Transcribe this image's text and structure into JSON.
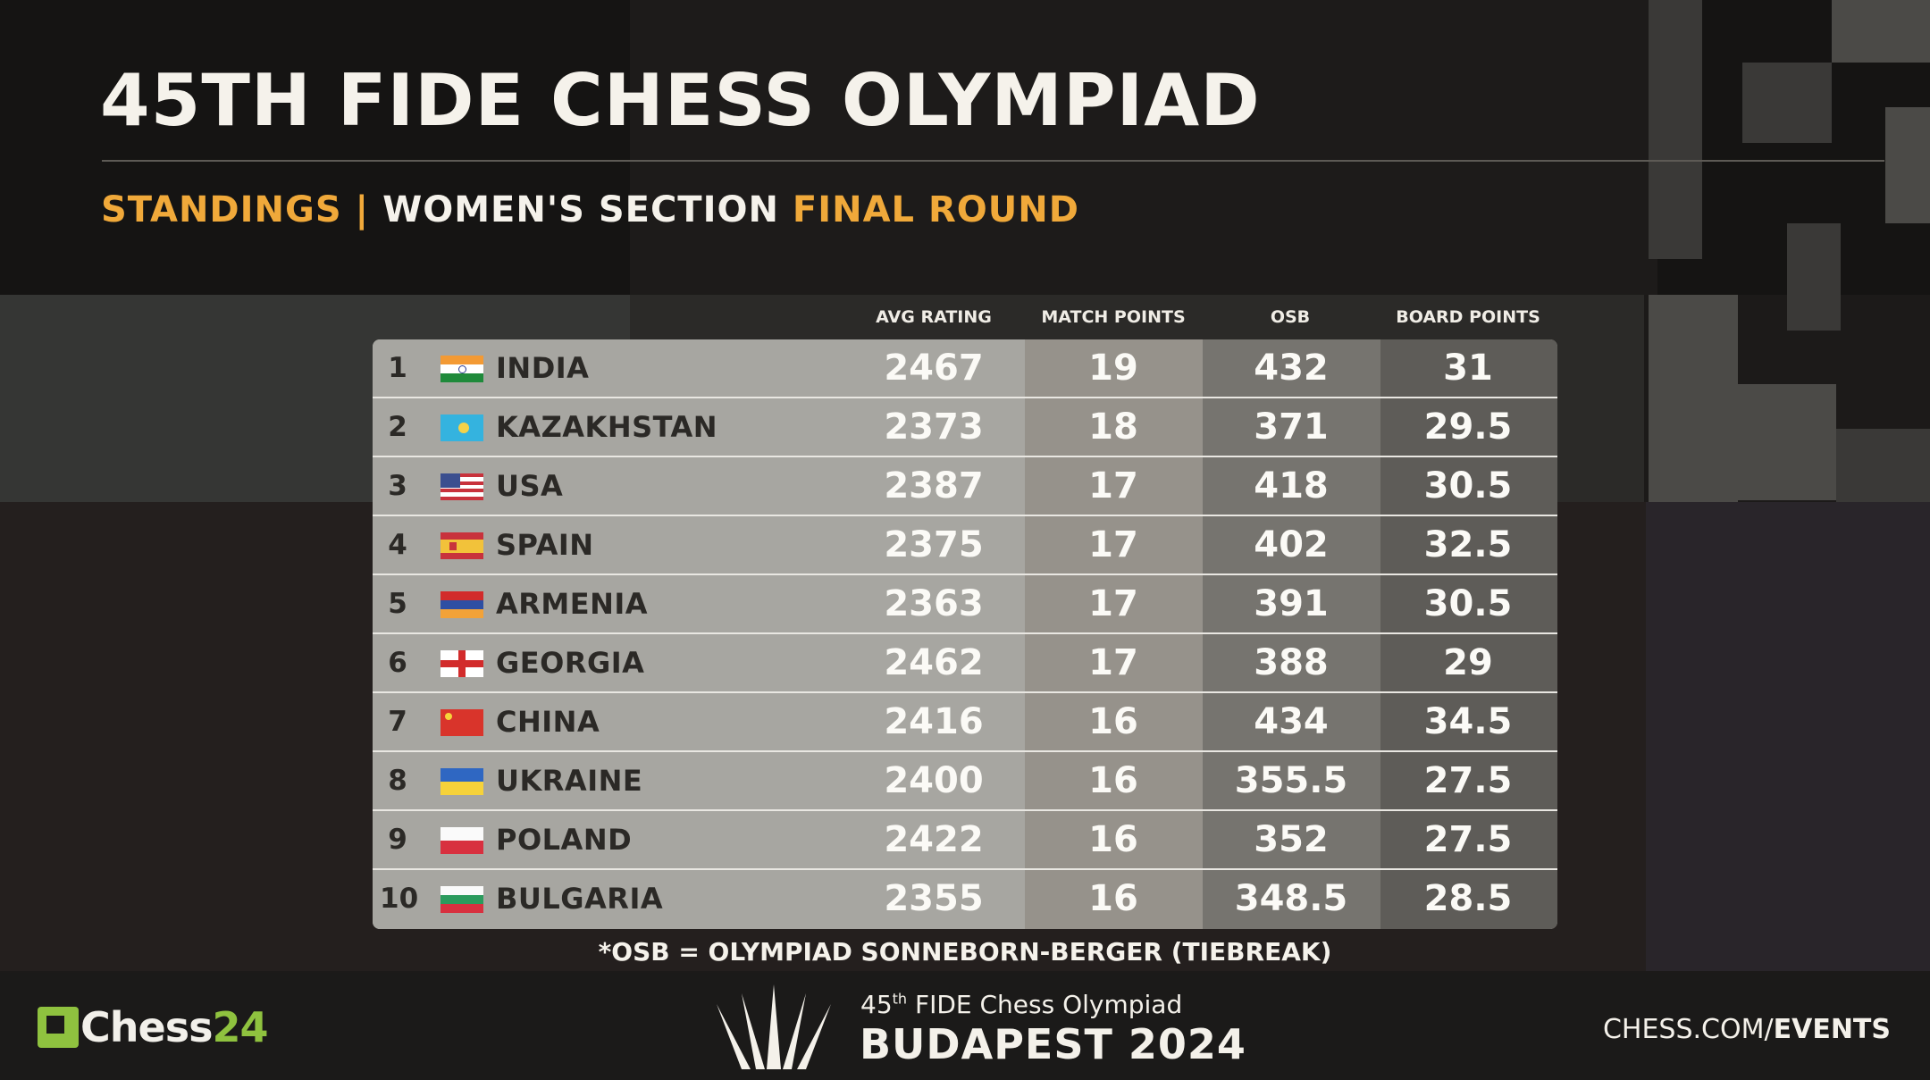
{
  "header": {
    "title": "45TH FIDE CHESS OLYMPIAD",
    "subtitle_part1": "STANDINGS |",
    "subtitle_part2": "WOMEN'S SECTION",
    "subtitle_part3": "FINAL ROUND"
  },
  "columns": [
    "AVG RATING",
    "MATCH POINTS",
    "OSB",
    "BOARD POINTS"
  ],
  "rows": [
    {
      "rank": "1",
      "country": "INDIA",
      "flag": "india-flag",
      "avg_rating": "2467",
      "match_points": "19",
      "osb": "432",
      "board_points": "31"
    },
    {
      "rank": "2",
      "country": "KAZAKHSTAN",
      "flag": "kazakhstan-flag",
      "avg_rating": "2373",
      "match_points": "18",
      "osb": "371",
      "board_points": "29.5"
    },
    {
      "rank": "3",
      "country": "USA",
      "flag": "usa-flag",
      "avg_rating": "2387",
      "match_points": "17",
      "osb": "418",
      "board_points": "30.5"
    },
    {
      "rank": "4",
      "country": "SPAIN",
      "flag": "spain-flag",
      "avg_rating": "2375",
      "match_points": "17",
      "osb": "402",
      "board_points": "32.5"
    },
    {
      "rank": "5",
      "country": "ARMENIA",
      "flag": "armenia-flag",
      "avg_rating": "2363",
      "match_points": "17",
      "osb": "391",
      "board_points": "30.5"
    },
    {
      "rank": "6",
      "country": "GEORGIA",
      "flag": "georgia-flag",
      "avg_rating": "2462",
      "match_points": "17",
      "osb": "388",
      "board_points": "29"
    },
    {
      "rank": "7",
      "country": "CHINA",
      "flag": "china-flag",
      "avg_rating": "2416",
      "match_points": "16",
      "osb": "434",
      "board_points": "34.5"
    },
    {
      "rank": "8",
      "country": "UKRAINE",
      "flag": "ukraine-flag",
      "avg_rating": "2400",
      "match_points": "16",
      "osb": "355.5",
      "board_points": "27.5"
    },
    {
      "rank": "9",
      "country": "POLAND",
      "flag": "poland-flag",
      "avg_rating": "2422",
      "match_points": "16",
      "osb": "352",
      "board_points": "27.5"
    },
    {
      "rank": "10",
      "country": "BULGARIA",
      "flag": "bulgaria-flag",
      "avg_rating": "2355",
      "match_points": "16",
      "osb": "348.5",
      "board_points": "28.5"
    }
  ],
  "footnote": "*OSB = OLYMPIAD SONNEBORN-BERGER (TIEBREAK)",
  "footer": {
    "left_brand_a": "Chess",
    "left_brand_b": "24",
    "event_line1_a": "45",
    "event_line1_sup": "th",
    "event_line1_b": " FIDE Chess Olympiad",
    "event_line2": "BUDAPEST 2024",
    "site_a": "CHESS.COM/",
    "site_b": "EVENTS"
  },
  "colors": {
    "accent_gold": "#f0a93a",
    "brand_green": "#8fc23f"
  }
}
